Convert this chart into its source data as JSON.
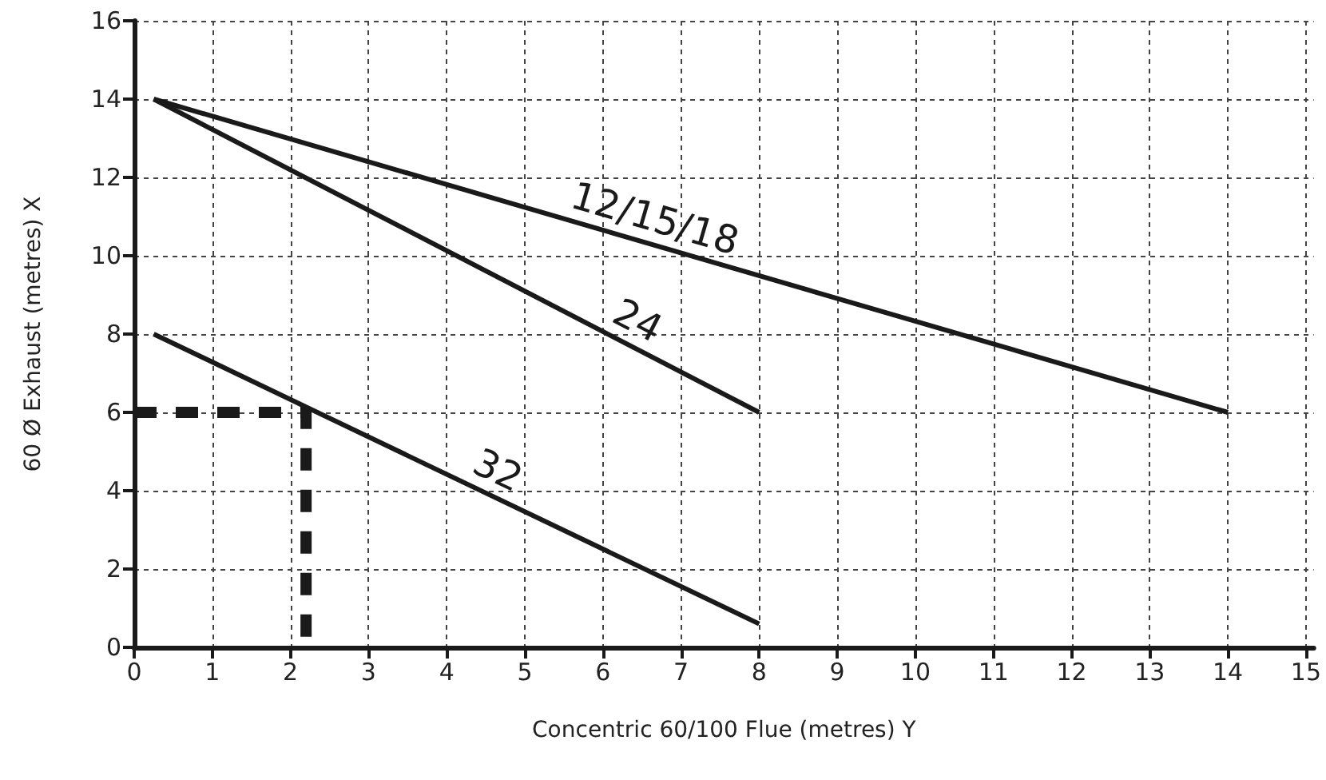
{
  "chart_data": {
    "type": "line",
    "xlabel": "Concentric 60/100 Flue (metres) Y",
    "ylabel": "60 Ø Exhaust (metres) X",
    "xlim": [
      0,
      15.1
    ],
    "xticks": [
      0,
      1,
      2,
      3,
      4,
      5,
      6,
      7,
      8,
      9,
      10,
      11,
      12,
      13,
      14,
      15
    ],
    "ylim": [
      0,
      16
    ],
    "yticks": [
      0,
      2,
      4,
      6,
      8,
      10,
      12,
      14,
      16
    ],
    "grid": true,
    "legend": false,
    "marker": "none",
    "line_style": "solid",
    "series": [
      {
        "name": "12/15/18",
        "color": "#1a1a1a",
        "x": [
          0.25,
          14
        ],
        "values": [
          14,
          6
        ]
      },
      {
        "name": "24",
        "color": "#1a1a1a",
        "x": [
          0.25,
          8
        ],
        "values": [
          14,
          6
        ]
      },
      {
        "name": "32",
        "color": "#1a1a1a",
        "x": [
          0.25,
          8
        ],
        "values": [
          8,
          0.6
        ]
      },
      {
        "color": "#1a1a1a",
        "line_style": "dashed",
        "x": [
          0,
          2.2,
          2.2
        ],
        "values": [
          6,
          6,
          0
        ]
      }
    ]
  }
}
